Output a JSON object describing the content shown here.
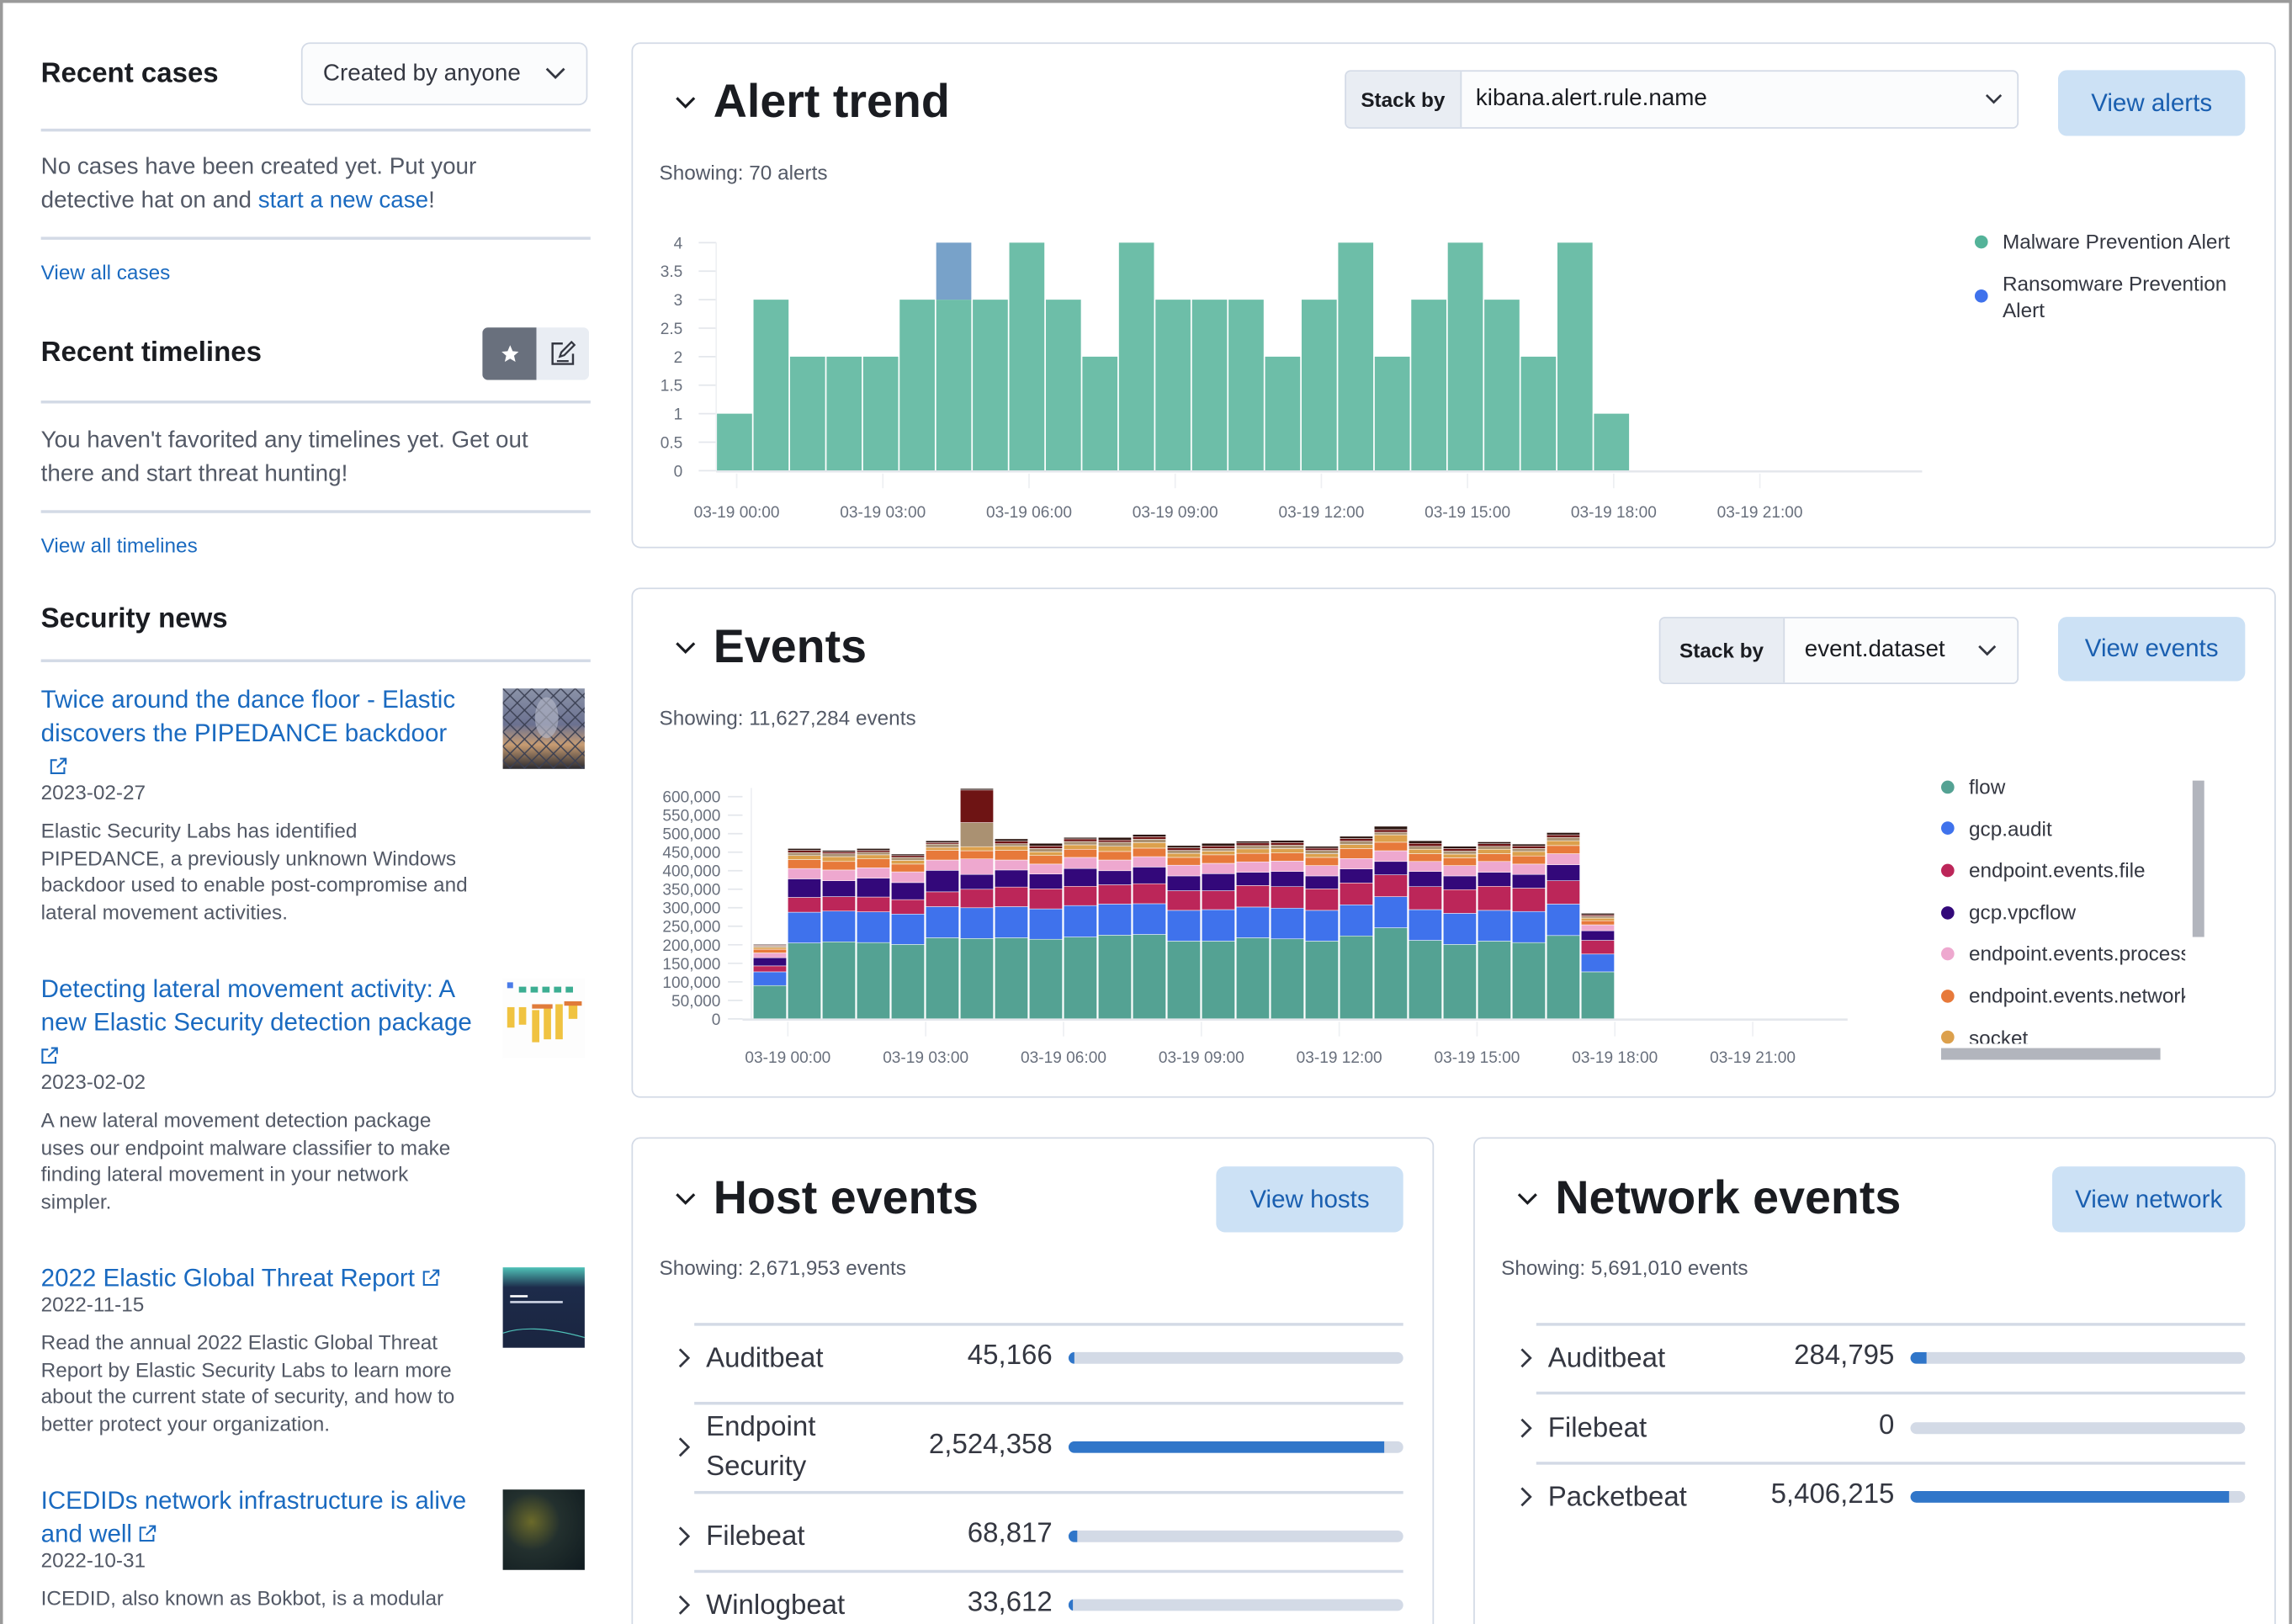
{
  "sidebar": {
    "recent_cases": {
      "title": "Recent cases",
      "filter": "Created by anyone",
      "empty_text": "No cases have been created yet. Put your detective hat on and ",
      "empty_link": "start a new case",
      "empty_end": "!",
      "view_all": "View all cases"
    },
    "recent_timelines": {
      "title": "Recent timelines",
      "empty_text": "You haven't favorited any timelines yet. Get out there and start threat hunting!",
      "view_all": "View all timelines",
      "toggle_icons": [
        "star-icon",
        "edit-icon"
      ]
    },
    "security_news": {
      "title": "Security news",
      "items": [
        {
          "title": "Twice around the dance floor - Elastic discovers the PIPEDANCE backdoor",
          "date": "2023-02-27",
          "description": "Elastic Security Labs has identified PIPEDANCE, a previously unknown Windows backdoor used to enable post-compromise and lateral movement activities."
        },
        {
          "title": "Detecting lateral movement activity: A new Elastic Security detection package",
          "date": "2023-02-02",
          "description": "A new lateral movement detection package uses our endpoint malware classifier to make finding lateral movement in your network simpler."
        },
        {
          "title": "2022 Elastic Global Threat Report",
          "date": "2022-11-15",
          "description": "Read the annual 2022 Elastic Global Threat Report by Elastic Security Labs to learn more about the current state of security, and how to better protect your organization."
        },
        {
          "title": "ICEDIDs network infrastructure is alive and well",
          "date": "2022-10-31",
          "description": "ICEDID, also known as Bokbot, is a modular"
        }
      ]
    }
  },
  "alert_trend": {
    "title": "Alert trend",
    "stack_by_label": "Stack by",
    "stack_by_value": "kibana.alert.rule.name",
    "button": "View alerts",
    "showing": "Showing: 70 alerts"
  },
  "events": {
    "title": "Events",
    "stack_by_label": "Stack by",
    "stack_by_value": "event.dataset",
    "button": "View events",
    "showing": "Showing: 11,627,284 events"
  },
  "host_events": {
    "title": "Host events",
    "button": "View hosts",
    "showing": "Showing: 2,671,953 events",
    "rows": [
      {
        "label": "Auditbeat",
        "count": "45,166",
        "fraction": 0.017
      },
      {
        "label": "Endpoint Security",
        "count": "2,524,358",
        "fraction": 0.945
      },
      {
        "label": "Filebeat",
        "count": "68,817",
        "fraction": 0.026
      },
      {
        "label": "Winlogbeat",
        "count": "33,612",
        "fraction": 0.013
      }
    ]
  },
  "network_events": {
    "title": "Network events",
    "button": "View network",
    "showing": "Showing: 5,691,010 events",
    "rows": [
      {
        "label": "Auditbeat",
        "count": "284,795",
        "fraction": 0.05
      },
      {
        "label": "Filebeat",
        "count": "0",
        "fraction": 0
      },
      {
        "label": "Packetbeat",
        "count": "5,406,215",
        "fraction": 0.95
      }
    ]
  },
  "chart_data": [
    {
      "type": "bar",
      "stacked": true,
      "interval": "45m",
      "x_ticks": [
        "03-19 00:00",
        "03-19 03:00",
        "03-19 06:00",
        "03-19 09:00",
        "03-19 12:00",
        "03-19 15:00",
        "03-19 18:00",
        "03-19 21:00"
      ],
      "y_ticks": [
        "0",
        "0.5",
        "1",
        "1.5",
        "2",
        "2.5",
        "3",
        "3.5",
        "4"
      ],
      "ylim": [
        0,
        4
      ],
      "legend_position": "right",
      "series": [
        {
          "name": "Malware Prevention Alert",
          "color": "#54b399",
          "values": [
            1,
            3,
            2,
            2,
            2,
            3,
            3,
            3,
            4,
            3,
            2,
            4,
            3,
            3,
            3,
            2,
            3,
            4,
            2,
            3,
            4,
            3,
            2,
            4,
            1
          ]
        },
        {
          "name": "Ransomware Prevention Alert",
          "color": "#6092c0",
          "values": [
            0,
            0,
            0,
            0,
            0,
            0,
            1,
            0,
            0,
            0,
            0,
            0,
            0,
            0,
            0,
            0,
            0,
            0,
            0,
            0,
            0,
            0,
            0,
            0,
            0
          ]
        }
      ]
    },
    {
      "type": "bar",
      "stacked": true,
      "interval": "45m",
      "x_ticks": [
        "03-19 00:00",
        "03-19 03:00",
        "03-19 06:00",
        "03-19 09:00",
        "03-19 12:00",
        "03-19 15:00",
        "03-19 18:00",
        "03-19 21:00"
      ],
      "y_ticks": [
        "0",
        "50,000",
        "100,000",
        "150,000",
        "200,000",
        "250,000",
        "300,000",
        "350,000",
        "400,000",
        "450,000",
        "500,000",
        "550,000",
        "600,000"
      ],
      "ylim": [
        0,
        600000
      ],
      "legend_position": "right",
      "series": [
        {
          "name": "flow",
          "color": "#54a293",
          "values": [
            90000,
            205000,
            208000,
            206000,
            201000,
            219000,
            217000,
            219000,
            215000,
            221000,
            226000,
            228000,
            210000,
            210000,
            219000,
            216000,
            210000,
            224000,
            246000,
            212000,
            201000,
            210000,
            206000,
            225000,
            127000
          ]
        },
        {
          "name": "gcp.audit",
          "color": "#3f72ec",
          "values": [
            37000,
            83000,
            83000,
            83000,
            82000,
            84000,
            83000,
            84000,
            82000,
            85000,
            84000,
            83000,
            83000,
            85000,
            83000,
            83000,
            83000,
            84000,
            84000,
            83000,
            84000,
            83000,
            84000,
            85000,
            48000
          ]
        },
        {
          "name": "endpoint.events.file",
          "color": "#bc2659",
          "values": [
            16000,
            40000,
            39000,
            40000,
            39000,
            40000,
            50000,
            53000,
            54000,
            52000,
            52000,
            54000,
            53000,
            51000,
            58000,
            58000,
            58000,
            59000,
            59000,
            62000,
            64000,
            65000,
            63000,
            63000,
            37000
          ]
        },
        {
          "name": "gcp.vpcflow",
          "color": "#33087a",
          "values": [
            22000,
            50000,
            43000,
            51000,
            46000,
            58000,
            40000,
            46000,
            40000,
            48000,
            38000,
            45000,
            40000,
            46000,
            36000,
            41000,
            35000,
            38000,
            36000,
            41000,
            37000,
            38000,
            37000,
            43000,
            26000
          ]
        },
        {
          "name": "endpoint.events.process",
          "color": "#eea8cf",
          "values": [
            13000,
            28000,
            29000,
            28000,
            29000,
            28000,
            42000,
            27000,
            27000,
            30000,
            29000,
            28000,
            29000,
            28000,
            28000,
            28000,
            28000,
            28000,
            29000,
            27000,
            28000,
            29000,
            28000,
            30000,
            16000
          ]
        },
        {
          "name": "endpoint.events.network",
          "color": "#e7793a",
          "values": [
            10000,
            24000,
            23000,
            24000,
            21000,
            26000,
            22000,
            26000,
            23000,
            22000,
            23000,
            23000,
            21000,
            23000,
            23000,
            22000,
            22000,
            27000,
            23000,
            21000,
            21000,
            21000,
            22000,
            22000,
            11000
          ]
        },
        {
          "name": "socket",
          "color": "#dca04c",
          "values": [
            5000,
            11000,
            13000,
            11000,
            10000,
            8000,
            11000,
            11000,
            10000,
            12000,
            14000,
            15000,
            11000,
            10000,
            12000,
            12000,
            10000,
            11000,
            20000,
            12000,
            10000,
            12000,
            12000,
            13000,
            7000
          ]
        },
        {
          "color": "#aa9172",
          "values": [
            4000,
            8000,
            8000,
            7000,
            8000,
            9000,
            65000,
            7000,
            9000,
            9000,
            11000,
            9000,
            8000,
            7000,
            9000,
            9000,
            9000,
            9000,
            7000,
            8000,
            8000,
            8000,
            8000,
            9000,
            5000
          ]
        },
        {
          "color": "#6e1414",
          "values": [
            2000,
            6000,
            5000,
            5000,
            5000,
            4000,
            88000,
            7000,
            7000,
            7000,
            6000,
            7000,
            7000,
            7000,
            7000,
            7000,
            6000,
            7000,
            7000,
            8000,
            7000,
            7000,
            7000,
            7000,
            4000
          ]
        },
        {
          "color": "#2b1510",
          "values": [
            2000,
            5000,
            4000,
            5000,
            4000,
            5000,
            4000,
            6000,
            7000,
            4000,
            7000,
            6000,
            6000,
            7000,
            5000,
            6000,
            5000,
            6000,
            9000,
            7000,
            6000,
            5000,
            5000,
            6000,
            4000
          ]
        }
      ]
    }
  ]
}
